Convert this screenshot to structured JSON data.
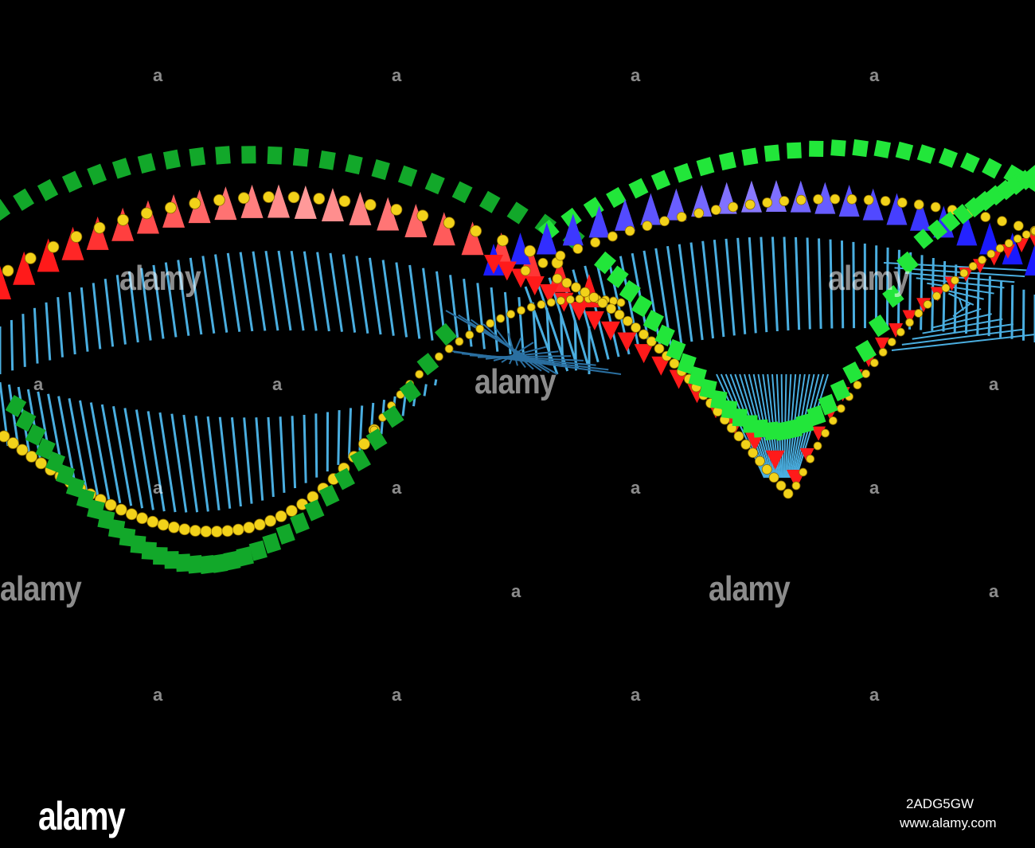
{
  "image": {
    "subject": "DNA double helix with colored backbone segments",
    "background": "#000000",
    "colors": {
      "rung": "#4aaee0",
      "rung_dark": "#2a6fa0",
      "bead": "#f2d21a",
      "green_block": "#12a82a",
      "green_block_bright": "#22e63a",
      "cone_red": "#ff1a1a",
      "cone_pink": "#ff9a9a",
      "cone_blue": "#1a1aff",
      "cone_violet": "#8a7aff",
      "cone_dark_blue": "#0a0aa0"
    }
  },
  "watermark": {
    "word": "alamy",
    "mark": "a"
  },
  "footer": {
    "logo": "alamy",
    "image_id": "2ADG5GW",
    "url": "www.alamy.com"
  }
}
